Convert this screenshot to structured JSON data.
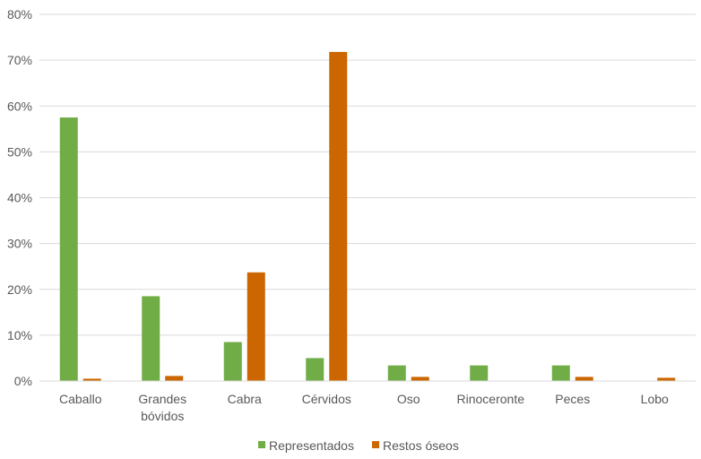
{
  "chart_data": {
    "type": "bar",
    "categories": [
      [
        "Caballo"
      ],
      [
        "Grandes",
        "bóvidos"
      ],
      [
        "Cabra"
      ],
      [
        "Cérvidos"
      ],
      [
        "Oso"
      ],
      [
        "Rinoceronte"
      ],
      [
        "Peces"
      ],
      [
        "Lobo"
      ]
    ],
    "series": [
      {
        "name": "Representados",
        "color": "#70ad47",
        "values": [
          57.5,
          18.5,
          8.5,
          5.0,
          3.4,
          3.4,
          3.4,
          0
        ]
      },
      {
        "name": "Restos óseos",
        "color": "#cc6600",
        "values": [
          0.5,
          1.1,
          23.7,
          71.8,
          0.9,
          0,
          0.9,
          0.7
        ]
      }
    ],
    "y_ticks": [
      "0%",
      "10%",
      "20%",
      "30%",
      "40%",
      "50%",
      "60%",
      "70%",
      "80%"
    ],
    "ylim": [
      0,
      80
    ],
    "grid": true,
    "legend_position": "bottom",
    "gridline_color": "#d9d9d9"
  }
}
